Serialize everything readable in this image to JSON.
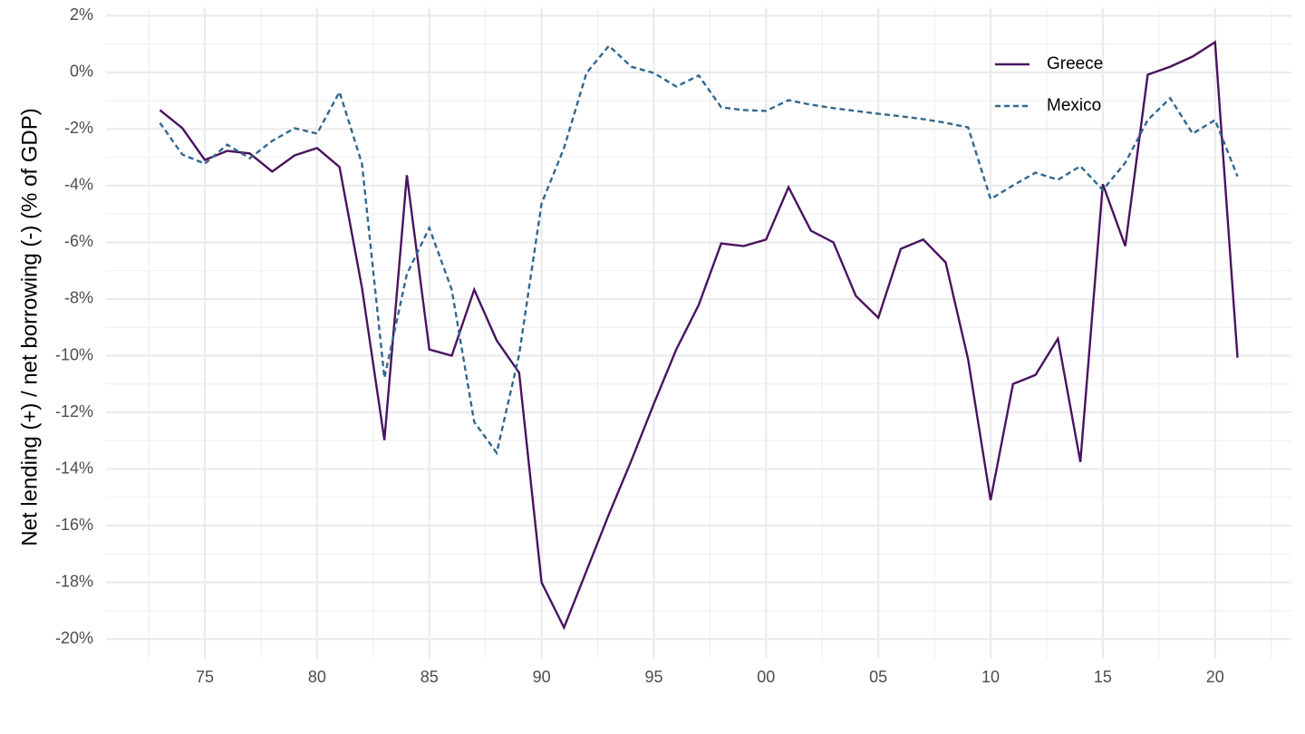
{
  "chart_data": {
    "type": "line",
    "y_label": "Net lending (+) / net borrowing (-) (% of GDP)",
    "x": [
      1973,
      1974,
      1975,
      1976,
      1977,
      1978,
      1979,
      1980,
      1981,
      1982,
      1983,
      1984,
      1985,
      1986,
      1987,
      1988,
      1989,
      1990,
      1991,
      1992,
      1993,
      1994,
      1995,
      1996,
      1997,
      1998,
      1999,
      2000,
      2001,
      2002,
      2003,
      2004,
      2005,
      2006,
      2007,
      2008,
      2009,
      2010,
      2011,
      2012,
      2013,
      2014,
      2015,
      2016,
      2017,
      2018,
      2019,
      2020,
      2021
    ],
    "series": [
      {
        "name": "Greece",
        "color": "#4a1260",
        "linetype": "solid",
        "values": [
          -1.33,
          -1.97,
          -3.09,
          -2.77,
          -2.86,
          -3.5,
          -2.93,
          -2.67,
          -3.34,
          -7.6,
          -12.98,
          -3.63,
          -9.78,
          -10.0,
          -7.67,
          -9.46,
          -10.6,
          -18.0,
          -19.6,
          -17.6,
          -15.6,
          -13.7,
          -11.7,
          -9.78,
          -8.21,
          -6.04,
          -6.13,
          -5.9,
          -4.05,
          -5.59,
          -6.0,
          -7.89,
          -8.66,
          -6.23,
          -5.9,
          -6.71,
          -10.13,
          -15.1,
          -11.0,
          -10.68,
          -9.4,
          -13.75,
          -3.95,
          -6.13,
          -0.08,
          0.2,
          0.56,
          1.07,
          -10.07
        ]
      },
      {
        "name": "Mexico",
        "color": "#31688e",
        "linetype": "dashed",
        "values": [
          -1.78,
          -2.9,
          -3.22,
          -2.55,
          -3.03,
          -2.42,
          -1.97,
          -2.16,
          -0.69,
          -3.22,
          -10.78,
          -7.12,
          -5.49,
          -7.67,
          -12.34,
          -13.43,
          -9.97,
          -4.63,
          -2.67,
          -0.02,
          0.94,
          0.2,
          -0.02,
          -0.5,
          -0.11,
          -1.23,
          -1.33,
          -1.36,
          -0.98,
          -1.14,
          -1.26,
          -1.36,
          -1.46,
          -1.55,
          -1.65,
          -1.78,
          -1.94,
          -4.47,
          -3.99,
          -3.54,
          -3.79,
          -3.31,
          -4.15,
          -3.19,
          -1.68,
          -0.91,
          -2.16,
          -1.68,
          -3.67
        ]
      }
    ],
    "xlim": [
      1970.6,
      2023.4
    ],
    "xticks": [
      {
        "value": 1975,
        "label": "75"
      },
      {
        "value": 1980,
        "label": "80"
      },
      {
        "value": 1985,
        "label": "85"
      },
      {
        "value": 1990,
        "label": "90"
      },
      {
        "value": 1995,
        "label": "95"
      },
      {
        "value": 2000,
        "label": "00"
      },
      {
        "value": 2005,
        "label": "05"
      },
      {
        "value": 2010,
        "label": "10"
      },
      {
        "value": 2015,
        "label": "15"
      },
      {
        "value": 2020,
        "label": "20"
      }
    ],
    "ylim": [
      -20.7,
      2.3
    ],
    "yticks": [
      {
        "value": 2,
        "label": "2%"
      },
      {
        "value": 0,
        "label": "0%"
      },
      {
        "value": -2,
        "label": "-2%"
      },
      {
        "value": -4,
        "label": "-4%"
      },
      {
        "value": -6,
        "label": "-6%"
      },
      {
        "value": -8,
        "label": "-8%"
      },
      {
        "value": -10,
        "label": "-10%"
      },
      {
        "value": -12,
        "label": "-12%"
      },
      {
        "value": -14,
        "label": "-14%"
      },
      {
        "value": -16,
        "label": "-16%"
      },
      {
        "value": -18,
        "label": "-18%"
      },
      {
        "value": -20,
        "label": "-20%"
      }
    ],
    "grid": true,
    "legend": "top-right"
  }
}
